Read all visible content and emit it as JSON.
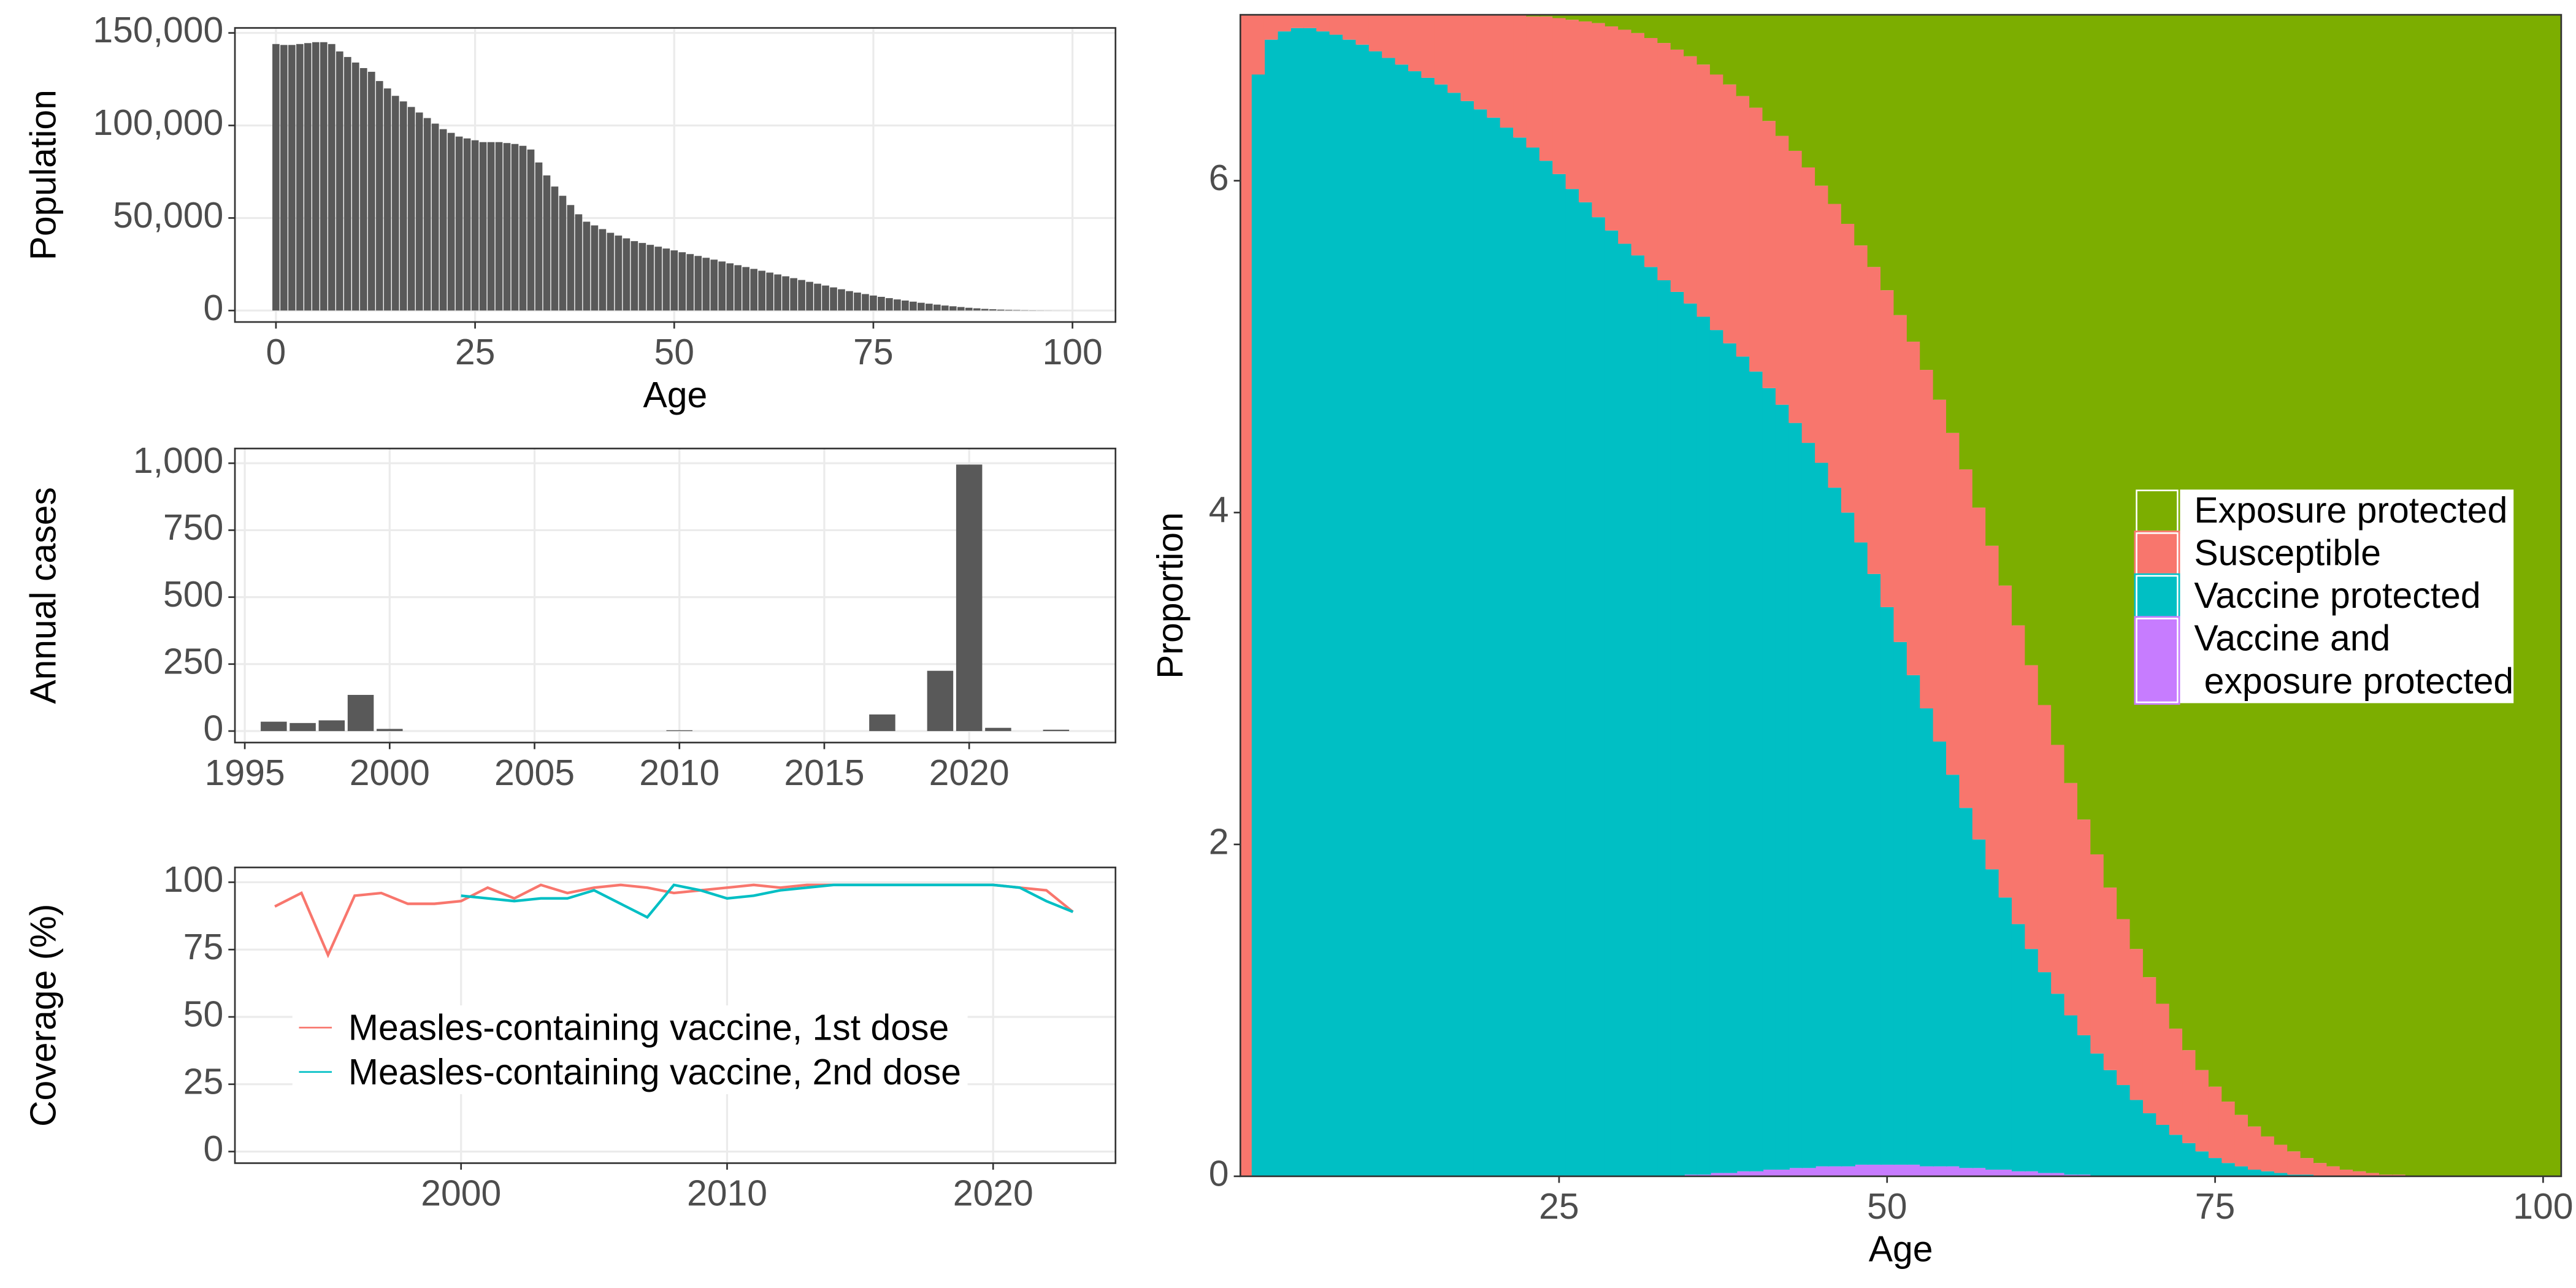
{
  "chart_data": [
    {
      "type": "bar",
      "x": [
        0,
        1,
        2,
        3,
        4,
        5,
        6,
        7,
        8,
        9,
        10,
        11,
        12,
        13,
        14,
        15,
        16,
        17,
        18,
        19,
        20,
        21,
        22,
        23,
        24,
        25,
        26,
        27,
        28,
        29,
        30,
        31,
        32,
        33,
        34,
        35,
        36,
        37,
        38,
        39,
        40,
        41,
        42,
        43,
        44,
        45,
        46,
        47,
        48,
        49,
        50,
        51,
        52,
        53,
        54,
        55,
        56,
        57,
        58,
        59,
        60,
        61,
        62,
        63,
        64,
        65,
        66,
        67,
        68,
        69,
        70,
        71,
        72,
        73,
        74,
        75,
        76,
        77,
        78,
        79,
        80,
        81,
        82,
        83,
        84,
        85,
        86,
        87,
        88,
        89,
        90,
        91,
        92,
        93,
        94,
        95,
        96,
        97,
        98,
        99,
        100
      ],
      "values": [
        144000,
        143500,
        143500,
        144000,
        144500,
        145000,
        145000,
        144000,
        140000,
        137000,
        134000,
        131000,
        129000,
        124000,
        120000,
        116000,
        113000,
        110000,
        107000,
        104000,
        101000,
        98000,
        96000,
        94000,
        93000,
        92000,
        91000,
        91000,
        91000,
        90500,
        90000,
        89000,
        87000,
        80000,
        73000,
        67000,
        62000,
        57000,
        52000,
        48000,
        46000,
        44000,
        42000,
        40500,
        39000,
        37500,
        36500,
        35500,
        34500,
        33500,
        32500,
        31500,
        30500,
        29500,
        28500,
        27500,
        26500,
        25500,
        24500,
        23500,
        22500,
        21500,
        20500,
        19500,
        18500,
        17500,
        16500,
        15500,
        14500,
        13500,
        12500,
        11500,
        10500,
        9700,
        8900,
        8100,
        7400,
        6700,
        6000,
        5400,
        4800,
        4200,
        3700,
        3200,
        2700,
        2300,
        1900,
        1500,
        1200,
        900,
        700,
        500,
        350,
        250,
        150,
        100,
        60,
        40,
        20,
        10,
        5
      ],
      "color": "#595959",
      "xlim": [
        -5.15,
        105.4
      ],
      "ylim": [
        -6200,
        152700
      ],
      "xticks": [
        0,
        25,
        50,
        75,
        100
      ],
      "yticks": [
        0,
        {
          "value": 50000,
          "label": "50,000"
        },
        {
          "value": 100000,
          "label": "100,000"
        },
        {
          "value": 150000,
          "label": "150,000"
        }
      ],
      "xlabel": "Age",
      "ylabel": "Population",
      "grid": true
    },
    {
      "type": "bar",
      "x": [
        1996,
        1997,
        1998,
        1999,
        2000,
        2001,
        2002,
        2003,
        2004,
        2005,
        2006,
        2007,
        2008,
        2009,
        2010,
        2011,
        2012,
        2013,
        2014,
        2015,
        2016,
        2017,
        2018,
        2019,
        2020,
        2021,
        2022,
        2023
      ],
      "values": [
        35,
        30,
        40,
        135,
        8,
        0,
        0,
        0,
        0,
        0,
        0,
        0,
        0,
        0,
        3,
        0,
        0,
        0,
        0,
        0,
        0,
        62,
        0,
        225,
        995,
        12,
        0,
        5
      ],
      "color": "#595959",
      "xlim": [
        1994.66,
        2025.05
      ],
      "ylim": [
        -43,
        1055
      ],
      "xticks": [
        1995,
        2000,
        2005,
        2010,
        2015,
        2020
      ],
      "yticks": [
        0,
        250,
        500,
        750,
        {
          "value": 1000,
          "label": "1,000"
        }
      ],
      "ylabel": "Annual cases",
      "grid": true
    },
    {
      "type": "line",
      "x": [
        1993,
        1994,
        1995,
        1996,
        1997,
        1998,
        1999,
        2000,
        2001,
        2002,
        2003,
        2004,
        2005,
        2006,
        2007,
        2008,
        2009,
        2010,
        2011,
        2012,
        2013,
        2014,
        2015,
        2016,
        2017,
        2018,
        2019,
        2020,
        2021,
        2022,
        2023
      ],
      "series": [
        {
          "name": "Measles-containing vaccine, 1st dose",
          "color": "#F8766D",
          "values": [
            91,
            96,
            73,
            95,
            96,
            92,
            92,
            93,
            98,
            94,
            99,
            96,
            98,
            99,
            98,
            96,
            97,
            98,
            99,
            98,
            99,
            99,
            99,
            99,
            99,
            99,
            99,
            99,
            98,
            97,
            89
          ]
        },
        {
          "name": "Measles-containing vaccine, 2nd dose",
          "color": "#00BFC4",
          "values": [
            null,
            null,
            null,
            null,
            null,
            null,
            null,
            95,
            94,
            93,
            94,
            94,
            97,
            92,
            87,
            99,
            97,
            94,
            95,
            97,
            98,
            99,
            99,
            99,
            99,
            99,
            99,
            99,
            98,
            93,
            89
          ]
        }
      ],
      "xlim": [
        1991.5,
        2024.6
      ],
      "ylim": [
        -4.3,
        105.5
      ],
      "xticks": [
        2000,
        2010,
        2020
      ],
      "yticks": [
        0,
        25,
        50,
        75,
        100
      ],
      "ylabel": "Coverage (%)",
      "grid": true,
      "legend_position": "inside-left"
    },
    {
      "type": "bar",
      "stacked": true,
      "x": [
        1,
        2,
        3,
        4,
        5,
        6,
        7,
        8,
        9,
        10,
        11,
        12,
        13,
        14,
        15,
        16,
        17,
        18,
        19,
        20,
        21,
        22,
        23,
        24,
        25,
        26,
        27,
        28,
        29,
        30,
        31,
        32,
        33,
        34,
        35,
        36,
        37,
        38,
        39,
        40,
        41,
        42,
        43,
        44,
        45,
        46,
        47,
        48,
        49,
        50,
        51,
        52,
        53,
        54,
        55,
        56,
        57,
        58,
        59,
        60,
        61,
        62,
        63,
        64,
        65,
        66,
        67,
        68,
        69,
        70,
        71,
        72,
        73,
        74,
        75,
        76,
        77,
        78,
        79,
        80,
        81,
        82,
        83,
        84,
        85,
        86,
        87,
        88,
        89,
        90,
        91,
        92,
        93,
        94,
        95,
        96,
        97,
        98,
        99,
        100,
        101
      ],
      "series": [
        {
          "name": "Exposure protected",
          "color": "#7CAE00",
          "values": [
            0,
            0,
            0,
            0,
            0,
            0,
            0,
            0,
            0,
            0,
            0,
            0,
            0,
            0,
            0,
            0,
            0,
            0,
            0,
            0,
            0,
            0,
            0.01,
            0.01,
            0.02,
            0.03,
            0.04,
            0.05,
            0.07,
            0.09,
            0.11,
            0.14,
            0.17,
            0.21,
            0.25,
            0.3,
            0.36,
            0.42,
            0.49,
            0.56,
            0.64,
            0.73,
            0.82,
            0.92,
            1.03,
            1.14,
            1.26,
            1.39,
            1.52,
            1.66,
            1.81,
            1.97,
            2.14,
            2.32,
            2.52,
            2.74,
            2.97,
            3.2,
            3.44,
            3.68,
            3.92,
            4.16,
            4.4,
            4.63,
            4.85,
            5.06,
            5.26,
            5.45,
            5.63,
            5.8,
            5.96,
            6.11,
            6.24,
            6.36,
            6.46,
            6.55,
            6.63,
            6.7,
            6.76,
            6.81,
            6.85,
            6.89,
            6.92,
            6.94,
            6.96,
            6.97,
            6.98,
            6.99,
            6.99,
            7,
            7,
            7,
            7,
            7,
            7,
            7,
            7,
            7,
            7,
            7,
            7
          ]
        },
        {
          "name": "Susceptible",
          "color": "#F8766D",
          "values": [
            7,
            0.36,
            0.15,
            0.1,
            0.08,
            0.08,
            0.1,
            0.12,
            0.15,
            0.18,
            0.22,
            0.26,
            0.3,
            0.34,
            0.38,
            0.42,
            0.47,
            0.52,
            0.57,
            0.62,
            0.68,
            0.74,
            0.79,
            0.87,
            0.94,
            1.02,
            1.09,
            1.17,
            1.23,
            1.29,
            1.34,
            1.38,
            1.43,
            1.46,
            1.49,
            1.52,
            1.54,
            1.56,
            1.57,
            1.59,
            1.61,
            1.62,
            1.64,
            1.66,
            1.67,
            1.71,
            1.74,
            1.79,
            1.85,
            1.91,
            1.97,
            2.01,
            2.04,
            2.06,
            2.06,
            2.04,
            2.0,
            1.95,
            1.88,
            1.8,
            1.71,
            1.61,
            1.5,
            1.4,
            1.3,
            1.2,
            1.1,
            1.0,
            0.91,
            0.82,
            0.73,
            0.64,
            0.56,
            0.49,
            0.43,
            0.37,
            0.31,
            0.26,
            0.21,
            0.17,
            0.14,
            0.1,
            0.08,
            0.06,
            0.04,
            0.03,
            0.02,
            0.01,
            0.01,
            0,
            0,
            0,
            0,
            0,
            0,
            0,
            0,
            0,
            0,
            0,
            0
          ]
        },
        {
          "name": "Vaccine protected",
          "color": "#00BFC4",
          "values": [
            0,
            6.64,
            6.85,
            6.9,
            6.92,
            6.92,
            6.9,
            6.88,
            6.85,
            6.82,
            6.78,
            6.74,
            6.7,
            6.66,
            6.62,
            6.58,
            6.53,
            6.48,
            6.43,
            6.38,
            6.32,
            6.26,
            6.2,
            6.12,
            6.04,
            5.95,
            5.87,
            5.78,
            5.7,
            5.62,
            5.55,
            5.48,
            5.4,
            5.33,
            5.25,
            5.17,
            5.08,
            5.0,
            4.91,
            4.82,
            4.71,
            4.61,
            4.49,
            4.37,
            4.24,
            4.09,
            3.94,
            3.75,
            3.56,
            3.36,
            3.15,
            2.95,
            2.76,
            2.56,
            2.36,
            2.17,
            1.98,
            1.81,
            1.64,
            1.49,
            1.34,
            1.21,
            1.08,
            0.96,
            0.84,
            0.74,
            0.64,
            0.55,
            0.46,
            0.38,
            0.31,
            0.25,
            0.2,
            0.15,
            0.11,
            0.08,
            0.06,
            0.04,
            0.03,
            0.02,
            0.01,
            0.01,
            0,
            0,
            0,
            0,
            0,
            0,
            0,
            0,
            0,
            0,
            0,
            0,
            0,
            0,
            0,
            0,
            0,
            0,
            0
          ]
        },
        {
          "name": "Vaccine and\n exposure protected",
          "color": "#C77CFF",
          "values": [
            0,
            0,
            0,
            0,
            0,
            0,
            0,
            0,
            0,
            0,
            0,
            0,
            0,
            0,
            0,
            0,
            0,
            0,
            0,
            0,
            0,
            0,
            0,
            0,
            0,
            0,
            0,
            0,
            0,
            0,
            0,
            0,
            0,
            0,
            0.01,
            0.01,
            0.02,
            0.02,
            0.03,
            0.03,
            0.04,
            0.04,
            0.05,
            0.05,
            0.06,
            0.06,
            0.06,
            0.07,
            0.07,
            0.07,
            0.07,
            0.07,
            0.06,
            0.06,
            0.06,
            0.05,
            0.05,
            0.04,
            0.04,
            0.03,
            0.03,
            0.02,
            0.02,
            0.01,
            0.01,
            0,
            0,
            0,
            0,
            0,
            0,
            0,
            0,
            0,
            0,
            0,
            0,
            0,
            0,
            0,
            0,
            0,
            0,
            0,
            0,
            0,
            0,
            0,
            0,
            0,
            0,
            0,
            0,
            0,
            0,
            0,
            0,
            0,
            0,
            0,
            0
          ]
        }
      ],
      "xlim": [
        0.71,
        101.38
      ],
      "ylim": [
        0,
        7
      ],
      "xticks": [
        25,
        50,
        75,
        100
      ],
      "yticks": [
        0,
        2,
        4,
        6
      ],
      "xlabel": "Age",
      "ylabel": "Proportion",
      "legend_position": "inside-right"
    }
  ]
}
